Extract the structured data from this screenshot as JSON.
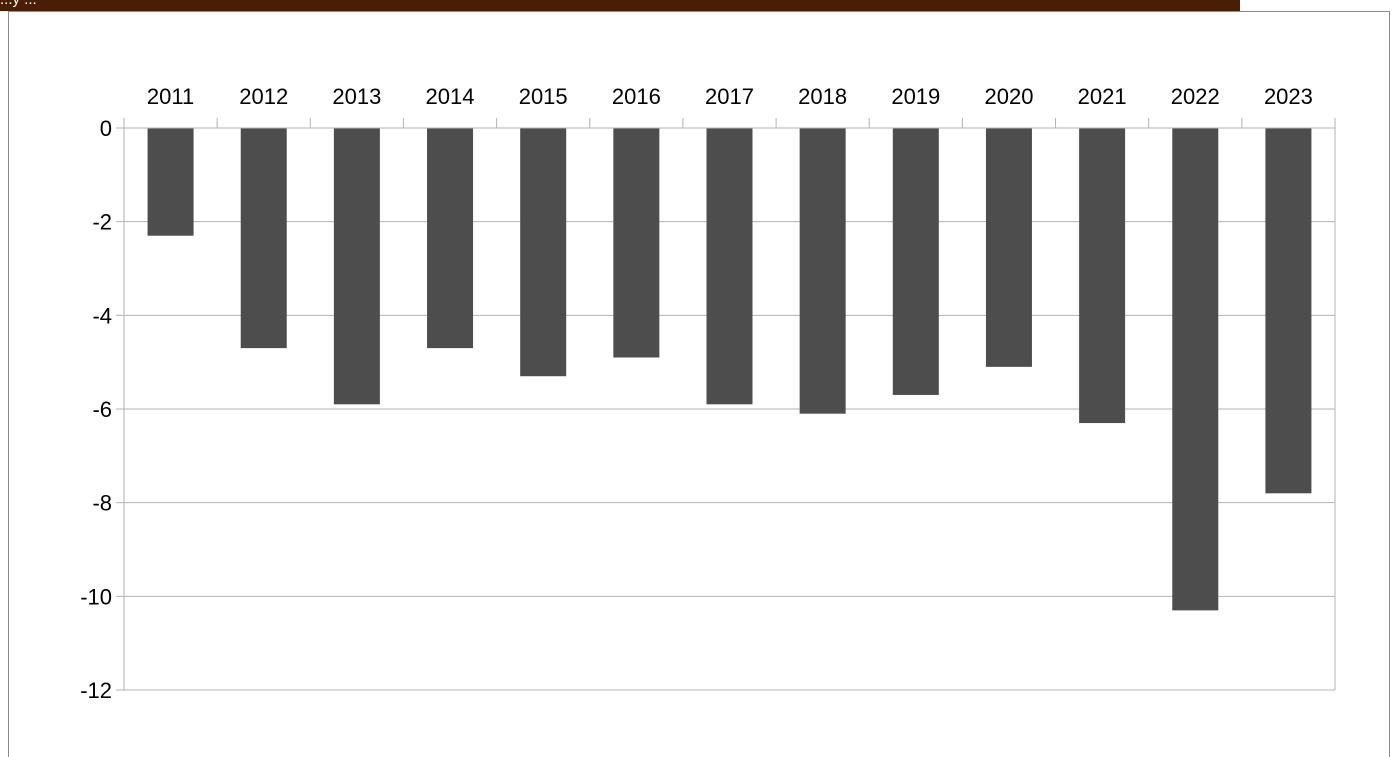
{
  "colors": {
    "header_bar": "#4a1e04",
    "header_text": "#ffffff",
    "bar": "#4d4d4d",
    "gridline": "#b3b3b3",
    "axis": "#b3b3b3",
    "frame": "#8c8c8c"
  },
  "header": {
    "partial_text": "...y ..."
  },
  "chart_data": {
    "type": "bar",
    "orientation": "vertical",
    "x_axis_position": "top",
    "categories": [
      "2011",
      "2012",
      "2013",
      "2014",
      "2015",
      "2016",
      "2017",
      "2018",
      "2019",
      "2020",
      "2021",
      "2022",
      "2023"
    ],
    "values": [
      -2.3,
      -4.7,
      -5.9,
      -4.7,
      -5.3,
      -4.9,
      -5.9,
      -6.1,
      -5.7,
      -5.1,
      -6.3,
      -10.3,
      -7.8
    ],
    "title": "",
    "xlabel": "",
    "ylabel": "",
    "ylim": [
      -12,
      0
    ],
    "yticks": [
      "0",
      "-2",
      "-4",
      "-6",
      "-8",
      "-10",
      "-12"
    ],
    "grid": true,
    "legend": "none"
  }
}
